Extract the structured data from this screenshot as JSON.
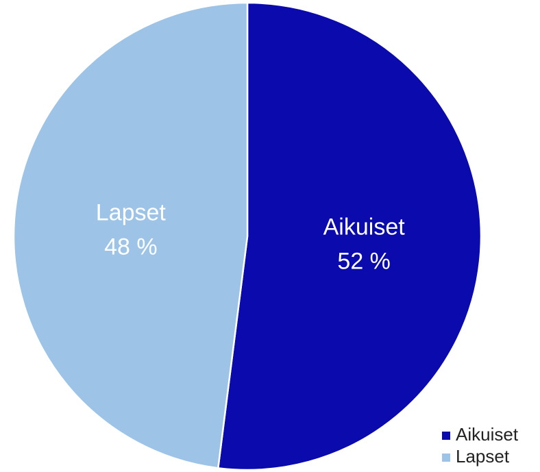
{
  "chart_data": {
    "type": "pie",
    "categories": [
      "Aikuiset",
      "Lapset"
    ],
    "values": [
      52,
      48
    ],
    "value_labels": [
      "52 %",
      "48 %"
    ],
    "colors": [
      "#0a0aad",
      "#9dc3e6"
    ],
    "legend": "lower right"
  }
}
